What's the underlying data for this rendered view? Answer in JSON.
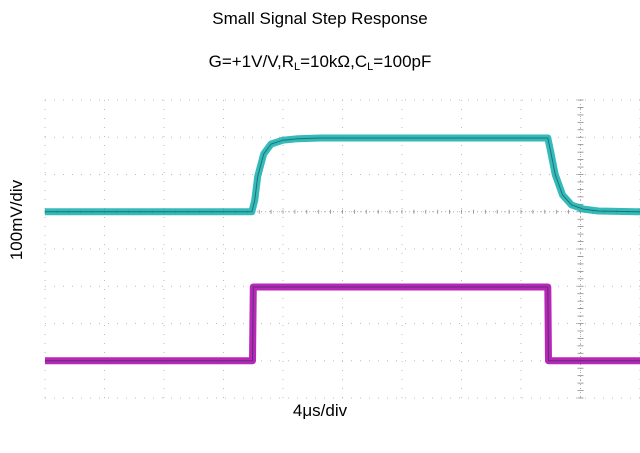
{
  "chart_data": {
    "type": "line",
    "title": "Small Signal Step Response",
    "subtitle": {
      "part1": "G=+1V/V,R",
      "sub1": "L",
      "part2": "=10kΩ,C",
      "sub2": "L",
      "part3": "=100pF"
    },
    "xlabel": "4μs/div",
    "ylabel": "100mV/div",
    "grid": true,
    "xlim": [
      0,
      40
    ],
    "ylim": [
      -5,
      3
    ],
    "series": [
      {
        "color": "#1fb3b3",
        "x": [
          0,
          13.9,
          14.1,
          14.3,
          14.7,
          15.2,
          16.0,
          17.0,
          18.5,
          33.8,
          34.0,
          34.3,
          34.8,
          35.4,
          36.2,
          37.2,
          40
        ],
        "y": [
          0,
          0,
          0.3,
          0.95,
          1.55,
          1.82,
          1.92,
          1.96,
          1.98,
          1.98,
          1.6,
          1.0,
          0.45,
          0.18,
          0.07,
          0.02,
          0
        ]
      },
      {
        "color": "#b010b0",
        "x": [
          0,
          13.95,
          14.0,
          33.8,
          33.85,
          40
        ],
        "y": [
          -4,
          -4,
          -2.02,
          -2.02,
          -4,
          -4
        ]
      }
    ]
  }
}
